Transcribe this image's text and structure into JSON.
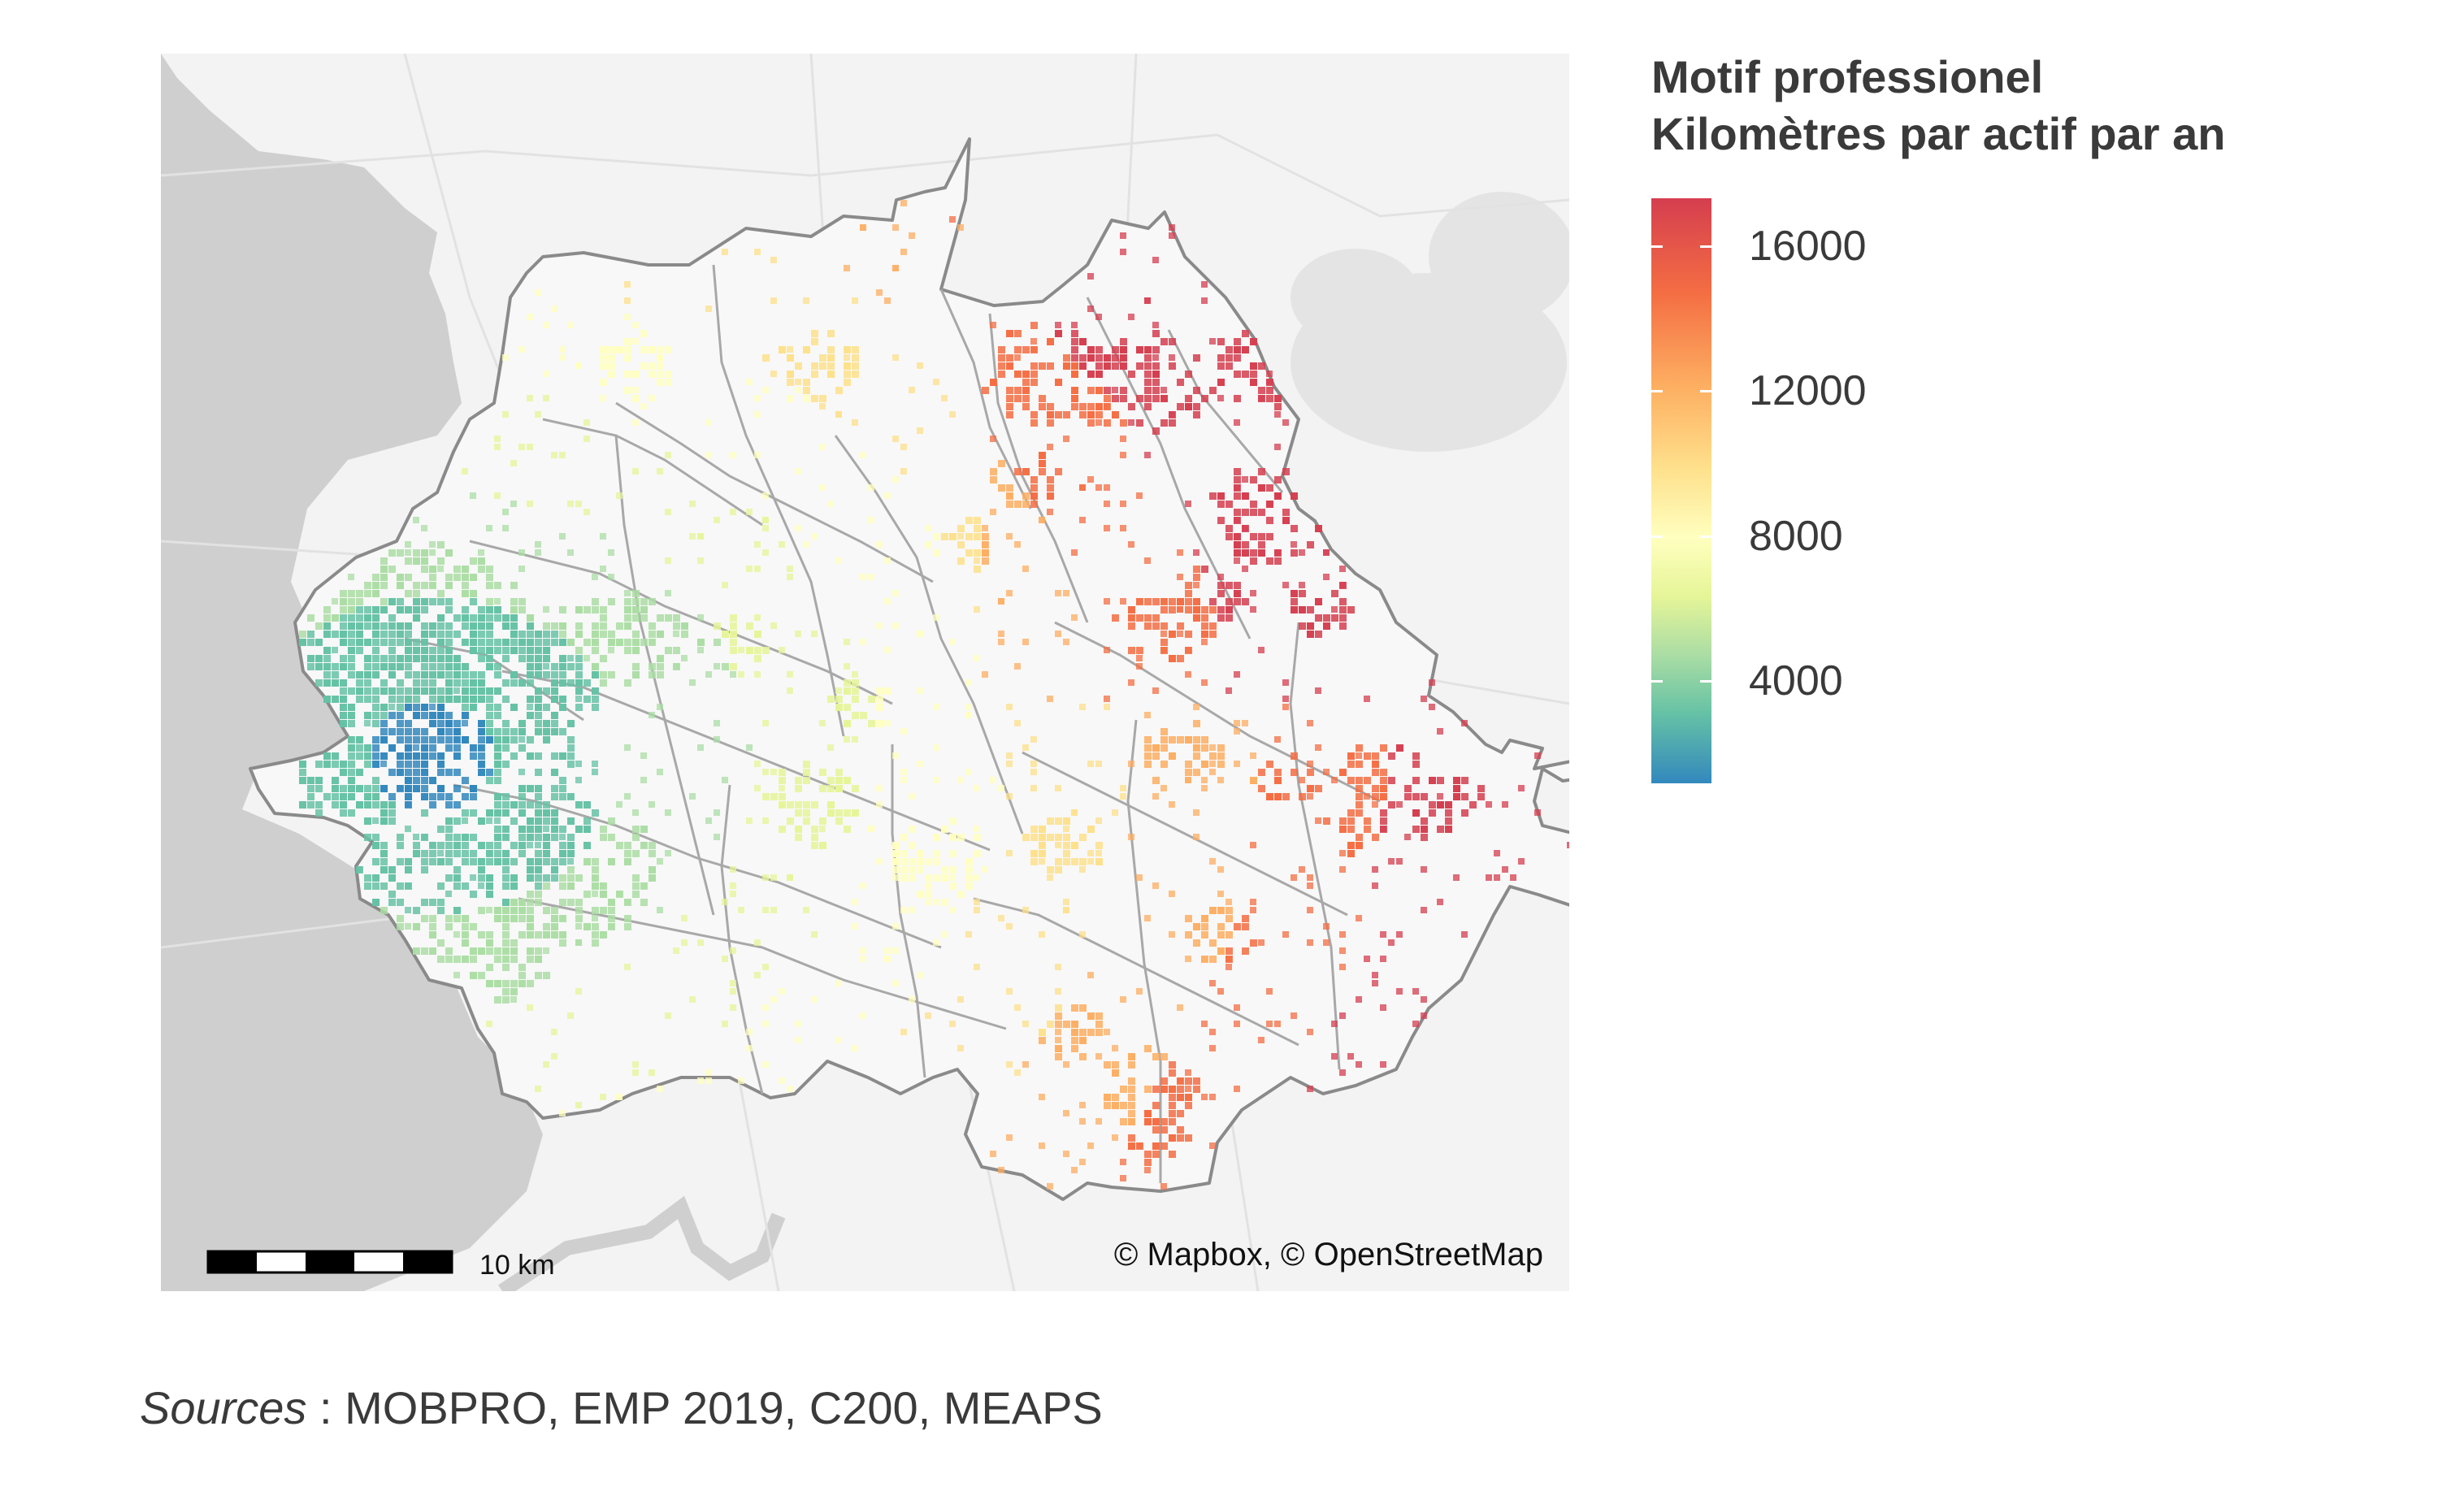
{
  "legend": {
    "title_line1": "Motif professionel",
    "title_line2": "Kilomètres par actif par an",
    "labels": [
      "16000",
      "12000",
      "8000",
      "4000"
    ],
    "colors": [
      "#d53e4f",
      "#f46d43",
      "#fdae61",
      "#fee08b",
      "#ffffbf",
      "#e6f598",
      "#abdda4",
      "#66c2a5",
      "#3288bd"
    ]
  },
  "map": {
    "attribution": "© Mapbox, © OpenStreetMap",
    "scale_label": "10 km"
  },
  "sources": {
    "label": "Sources",
    "text": " : MOBPRO, EMP 2019, C200, MEAPS"
  }
}
